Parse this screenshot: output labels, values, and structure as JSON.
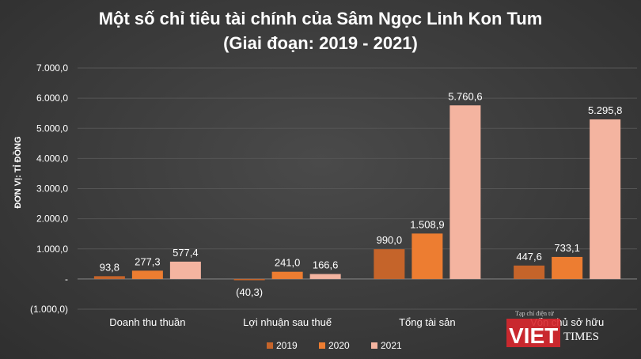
{
  "chart_data": {
    "type": "bar",
    "title_line1": "Một số chỉ tiêu tài chính của Sâm Ngọc Linh Kon Tum",
    "title_line2": "(Giai đoạn: 2019 - 2021)",
    "ylabel": "ĐƠN VỊ: TỈ ĐỒNG",
    "xlabel": "",
    "ylim": [
      -1000,
      7000
    ],
    "yticks": [
      -1000,
      0,
      1000,
      2000,
      3000,
      4000,
      5000,
      6000,
      7000
    ],
    "ytick_labels": [
      "(1.000,0)",
      "-",
      "1.000,0",
      "2.000,0",
      "3.000,0",
      "4.000,0",
      "5.000,0",
      "6.000,0",
      "7.000,0"
    ],
    "grid": true,
    "legend_position": "bottom",
    "categories": [
      "Doanh thu thuần",
      "Lợi nhuận sau thuế",
      "Tổng tài sản",
      "Vốn chủ sở hữu"
    ],
    "series": [
      {
        "name": "2019",
        "color": "#c5642a",
        "values": [
          93.8,
          -40.3,
          990.0,
          447.6
        ],
        "labels": [
          "93,8",
          "(40,3)",
          "990,0",
          "447,6"
        ]
      },
      {
        "name": "2020",
        "color": "#ed7d31",
        "values": [
          277.3,
          241.0,
          1508.9,
          733.1
        ],
        "labels": [
          "277,3",
          "241,0",
          "1.508,9",
          "733,1"
        ]
      },
      {
        "name": "2021",
        "color": "#f4b4a0",
        "values": [
          577.4,
          166.6,
          5760.6,
          5295.8
        ],
        "labels": [
          "577,4",
          "166,6",
          "5.760,6",
          "5.295,8"
        ]
      }
    ]
  },
  "watermark": {
    "tagline": "Tạp chí điện tử",
    "logo_part1": "VIET",
    "logo_part2": "TIMES",
    "brand_color": "#d9272e"
  }
}
